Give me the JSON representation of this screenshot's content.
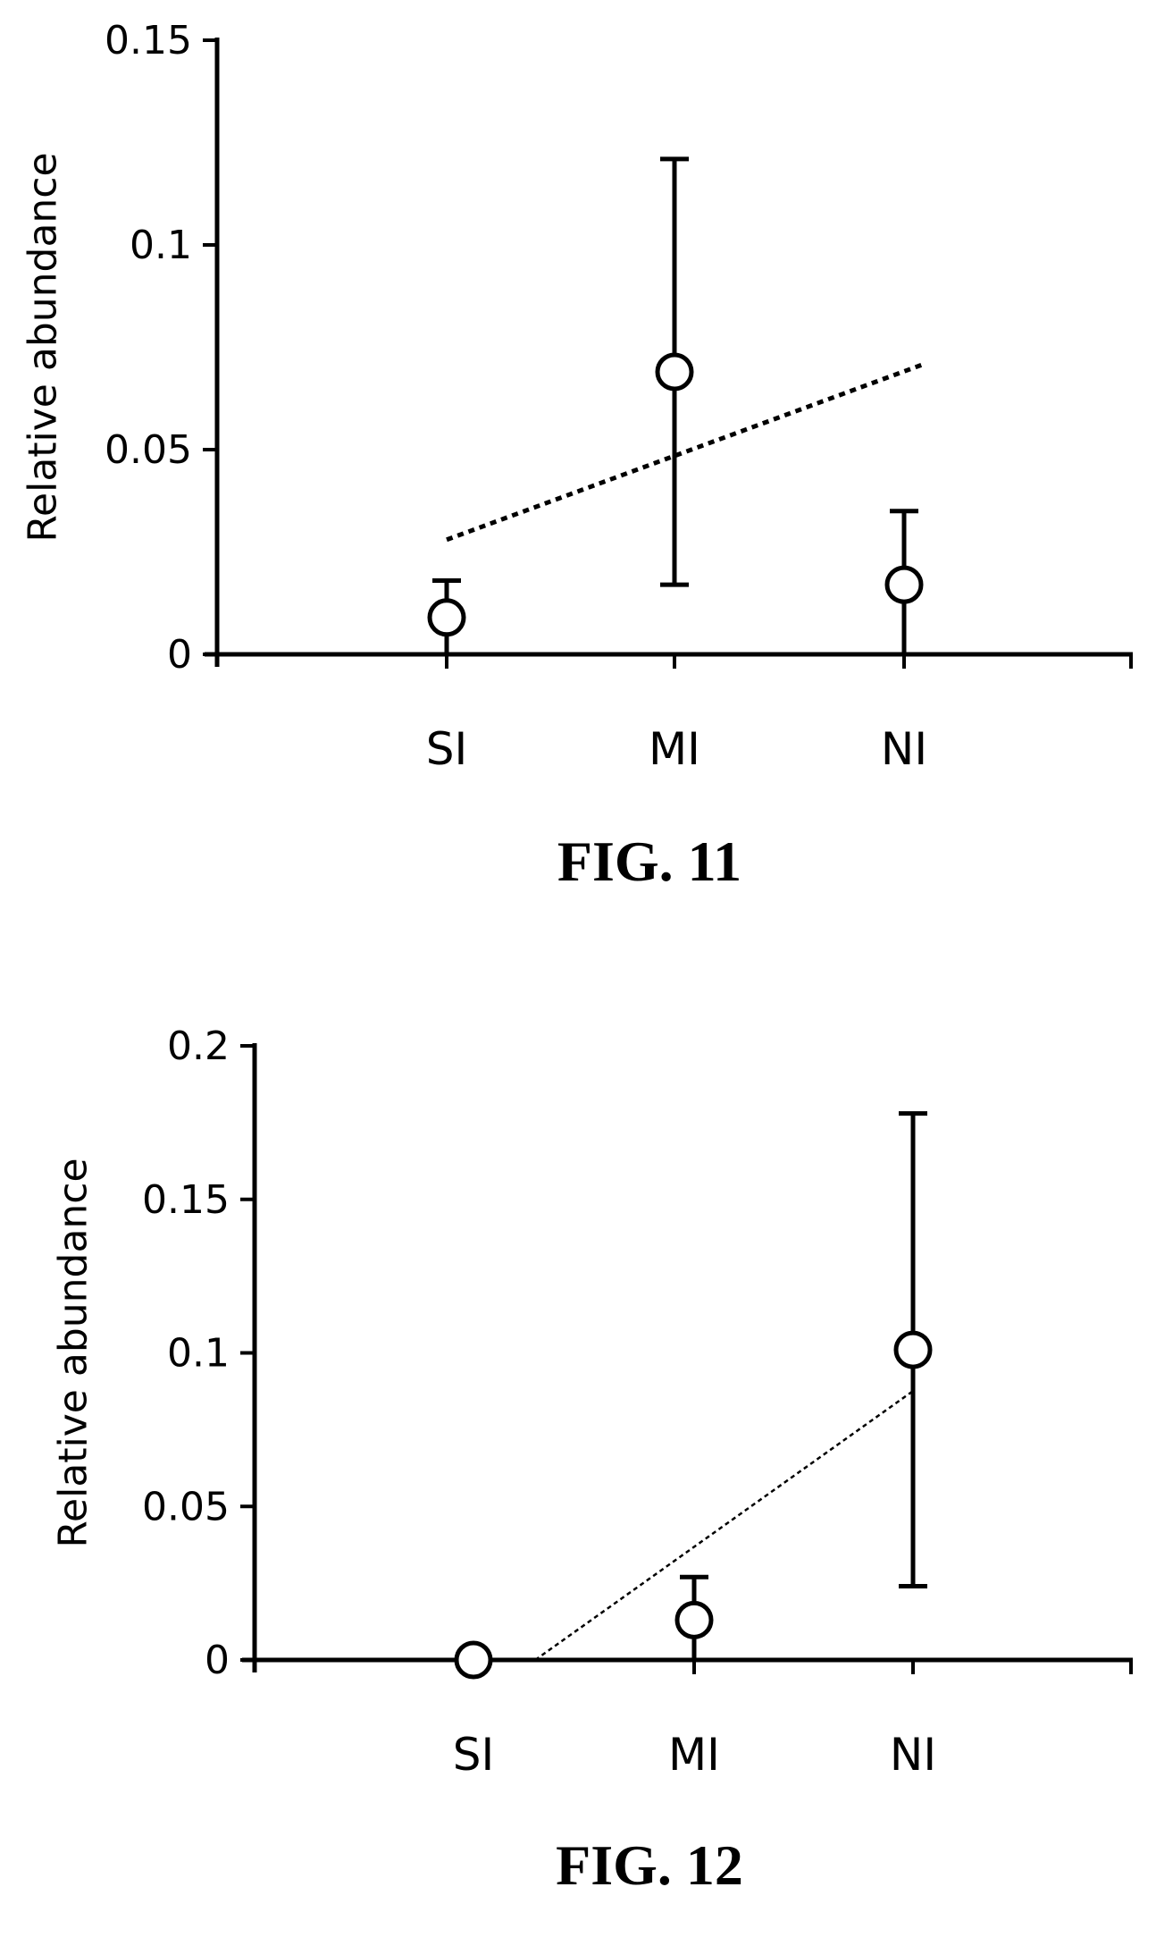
{
  "chart_data": [
    {
      "type": "scatter",
      "caption": "FIG. 11",
      "ylabel": "Relative abundance",
      "xlabel": "",
      "categories": [
        "SI",
        "MI",
        "NI"
      ],
      "ylim": [
        0,
        0.15
      ],
      "yticks": [
        0,
        0.05,
        0.1,
        0.15
      ],
      "ytick_labels": [
        "0",
        "0.05",
        "0.1",
        "0.15"
      ],
      "points": [
        {
          "x": "SI",
          "y": 0.009,
          "err_low": 0.0,
          "err_high": 0.018
        },
        {
          "x": "MI",
          "y": 0.069,
          "err_low": 0.017,
          "err_high": 0.121
        },
        {
          "x": "NI",
          "y": 0.017,
          "err_low": 0.0,
          "err_high": 0.035
        }
      ],
      "trendline": {
        "style": "dotted",
        "from": {
          "x": 0.0,
          "y": 0.028
        },
        "to": {
          "x": 2.1,
          "y": 0.071
        }
      },
      "grid": false,
      "legend": "none"
    },
    {
      "type": "scatter",
      "caption": "FIG. 12",
      "ylabel": "Relative abundance",
      "xlabel": "",
      "categories": [
        "SI",
        "MI",
        "NI"
      ],
      "ylim": [
        0,
        0.2
      ],
      "yticks": [
        0,
        0.05,
        0.1,
        0.15,
        0.2
      ],
      "ytick_labels": [
        "0",
        "0.05",
        "0.1",
        "0.15",
        "0.2"
      ],
      "points": [
        {
          "x": "SI",
          "y": 0.0,
          "err_low": 0.0,
          "err_high": 0.0
        },
        {
          "x": "MI",
          "y": 0.013,
          "err_low": 0.0,
          "err_high": 0.027
        },
        {
          "x": "NI",
          "y": 0.101,
          "err_low": 0.024,
          "err_high": 0.178
        }
      ],
      "trendline": {
        "style": "dashed-thin",
        "from": {
          "x": 0.28,
          "y": 0.0
        },
        "to": {
          "x": 2.0,
          "y": 0.088
        }
      },
      "grid": false,
      "legend": "none"
    }
  ]
}
